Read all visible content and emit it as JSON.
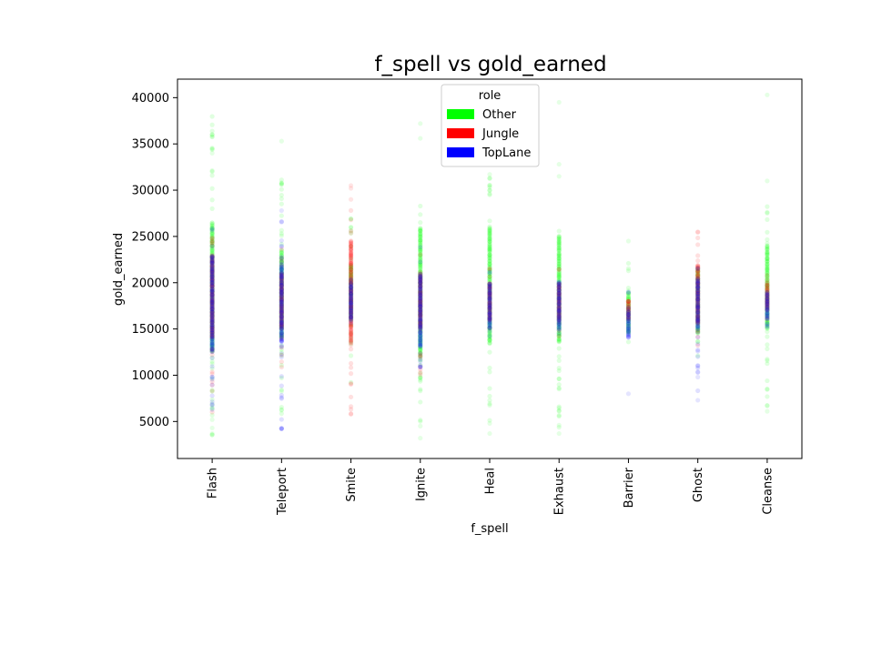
{
  "chart_data": {
    "type": "scatter",
    "title": "f_spell vs gold_earned",
    "xlabel": "f_spell",
    "ylabel": "gold_earned",
    "categories": [
      "Flash",
      "Teleport",
      "Smite",
      "Ignite",
      "Heal",
      "Exhaust",
      "Barrier",
      "Ghost",
      "Cleanse"
    ],
    "ylim": [
      1000,
      42000
    ],
    "yticks": [
      5000,
      10000,
      15000,
      20000,
      25000,
      30000,
      35000,
      40000
    ],
    "grid": false,
    "legend": {
      "title": "role",
      "placement": "top-center",
      "entries": [
        {
          "name": "Other",
          "color": "#00ff00"
        },
        {
          "name": "Jungle",
          "color": "#ff0000"
        },
        {
          "name": "TopLane",
          "color": "#0000ff"
        }
      ]
    },
    "series": [
      {
        "name": "Other",
        "color": "#00ff00",
        "ranges": [
          {
            "category": "Flash",
            "dense": [
              12500,
              26500
            ],
            "sparse": [
              3500,
              38000
            ],
            "outliers": [
              35800,
              34000,
              5200,
              4300,
              3700
            ]
          },
          {
            "category": "Teleport",
            "dense": [
              14000,
              23500
            ],
            "sparse": [
              5500,
              31500
            ],
            "outliers": [
              35300,
              30800,
              6300
            ]
          },
          {
            "category": "Smite",
            "dense": [
              16000,
              22000
            ],
            "sparse": [
              9000,
              27000
            ],
            "outliers": []
          },
          {
            "category": "Ignite",
            "dense": [
              12000,
              26000
            ],
            "sparse": [
              3200,
              29000
            ],
            "outliers": [
              37200,
              35600,
              4500,
              3200
            ]
          },
          {
            "category": "Heal",
            "dense": [
              13500,
              26000
            ],
            "sparse": [
              4000,
              31500
            ],
            "outliers": [
              31700,
              4800,
              3700
            ]
          },
          {
            "category": "Exhaust",
            "dense": [
              13500,
              25000
            ],
            "sparse": [
              4000,
              28500
            ],
            "outliers": [
              39500,
              32800,
              31500,
              4600,
              3700
            ]
          },
          {
            "category": "Barrier",
            "dense": [
              14500,
              19000
            ],
            "sparse": [
              13500,
              22500
            ],
            "outliers": [
              24500
            ]
          },
          {
            "category": "Ghost",
            "dense": [
              14500,
              21500
            ],
            "sparse": [
              12000,
              22000
            ],
            "outliers": []
          },
          {
            "category": "Cleanse",
            "dense": [
              15000,
              24000
            ],
            "sparse": [
              6000,
              28500
            ],
            "outliers": [
              40300,
              31000,
              6700,
              6100
            ]
          }
        ]
      },
      {
        "name": "Jungle",
        "color": "#ff0000",
        "ranges": [
          {
            "category": "Flash",
            "dense": [
              14000,
              23000
            ],
            "sparse": [
              6000,
              26000
            ],
            "outliers": []
          },
          {
            "category": "Teleport",
            "dense": [
              15000,
              21000
            ],
            "sparse": [
              10000,
              24000
            ],
            "outliers": []
          },
          {
            "category": "Smite",
            "dense": [
              13500,
              24500
            ],
            "sparse": [
              5800,
              28000
            ],
            "outliers": [
              30500,
              30200,
              29000,
              5800
            ]
          },
          {
            "category": "Ignite",
            "dense": [
              15000,
              21000
            ],
            "sparse": [
              10000,
              24000
            ],
            "outliers": []
          },
          {
            "category": "Heal",
            "dense": [
              16000,
              20000
            ],
            "sparse": [
              14000,
              22000
            ],
            "outliers": []
          },
          {
            "category": "Exhaust",
            "dense": [
              16000,
              20000
            ],
            "sparse": [
              14000,
              22000
            ],
            "outliers": []
          },
          {
            "category": "Barrier",
            "dense": [
              16000,
              18000
            ],
            "sparse": [
              16000,
              18000
            ],
            "outliers": []
          },
          {
            "category": "Ghost",
            "dense": [
              15500,
              22000
            ],
            "sparse": [
              13000,
              25500
            ],
            "outliers": [
              25500
            ]
          },
          {
            "category": "Cleanse",
            "dense": [
              17000,
              20000
            ],
            "sparse": [
              16000,
              21000
            ],
            "outliers": []
          }
        ]
      },
      {
        "name": "TopLane",
        "color": "#0000ff",
        "ranges": [
          {
            "category": "Flash",
            "dense": [
              12500,
              23000
            ],
            "sparse": [
              6000,
              26000
            ],
            "outliers": []
          },
          {
            "category": "Teleport",
            "dense": [
              13500,
              22000
            ],
            "sparse": [
              4200,
              27500
            ],
            "outliers": [
              27800,
              4200
            ]
          },
          {
            "category": "Smite",
            "dense": [
              16000,
              20000
            ],
            "sparse": [
              15000,
              21000
            ],
            "outliers": []
          },
          {
            "category": "Ignite",
            "dense": [
              13000,
              21000
            ],
            "sparse": [
              10000,
              24000
            ],
            "outliers": []
          },
          {
            "category": "Heal",
            "dense": [
              15000,
              20000
            ],
            "sparse": [
              14000,
              22000
            ],
            "outliers": []
          },
          {
            "category": "Exhaust",
            "dense": [
              15000,
              20000
            ],
            "sparse": [
              14000,
              22000
            ],
            "outliers": []
          },
          {
            "category": "Barrier",
            "dense": [
              14000,
              17000
            ],
            "sparse": [
              14000,
              19000
            ],
            "outliers": [
              8000
            ]
          },
          {
            "category": "Ghost",
            "dense": [
              15000,
              20500
            ],
            "sparse": [
              7300,
              22000
            ],
            "outliers": [
              10300,
              9800,
              7300
            ]
          },
          {
            "category": "Cleanse",
            "dense": [
              16000,
              19000
            ],
            "sparse": [
              15000,
              20000
            ],
            "outliers": []
          }
        ]
      }
    ]
  }
}
